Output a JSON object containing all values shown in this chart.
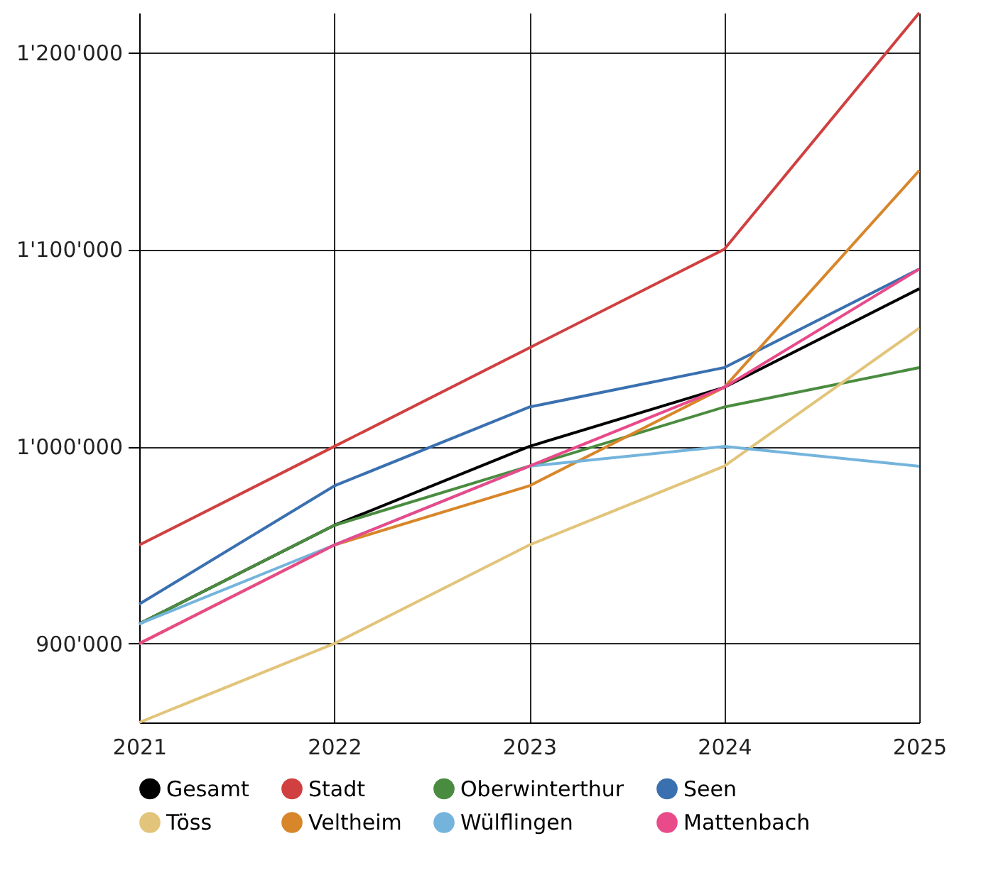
{
  "chart_data": {
    "type": "line",
    "x": [
      2021,
      2022,
      2023,
      2024,
      2025
    ],
    "xlim": [
      2021,
      2025
    ],
    "xticks": [
      2021,
      2022,
      2023,
      2024,
      2025
    ],
    "ylim": [
      860000,
      1220000
    ],
    "yticks": [
      {
        "value": 900000,
        "label": "900'000"
      },
      {
        "value": 1000000,
        "label": "1'000'000"
      },
      {
        "value": 1100000,
        "label": "1'100'000"
      },
      {
        "value": 1200000,
        "label": "1'200'000"
      }
    ],
    "grid": true,
    "legend": "bottom",
    "marker": "none",
    "line_style": "solid",
    "series": [
      {
        "name": "Gesamt",
        "color": "#000000",
        "values": [
          910000,
          960000,
          1000000,
          1030000,
          1080000
        ]
      },
      {
        "name": "Stadt",
        "color": "#d04040",
        "values": [
          950000,
          1000000,
          1050000,
          1100000,
          1220000
        ]
      },
      {
        "name": "Oberwinterthur",
        "color": "#4a8c3f",
        "values": [
          910000,
          960000,
          990000,
          1020000,
          1040000
        ]
      },
      {
        "name": "Seen",
        "color": "#3a70b0",
        "values": [
          920000,
          980000,
          1020000,
          1040000,
          1090000
        ]
      },
      {
        "name": "Töss",
        "color": "#e2c47a",
        "values": [
          860000,
          900000,
          950000,
          990000,
          1060000
        ]
      },
      {
        "name": "Veltheim",
        "color": "#d8862a",
        "values": [
          900000,
          950000,
          980000,
          1030000,
          1140000
        ]
      },
      {
        "name": "Wülflingen",
        "color": "#74b4dc",
        "values": [
          910000,
          950000,
          990000,
          1000000,
          990000
        ]
      },
      {
        "name": "Mattenbach",
        "color": "#e84a8a",
        "values": [
          900000,
          950000,
          990000,
          1030000,
          1090000
        ]
      }
    ]
  }
}
